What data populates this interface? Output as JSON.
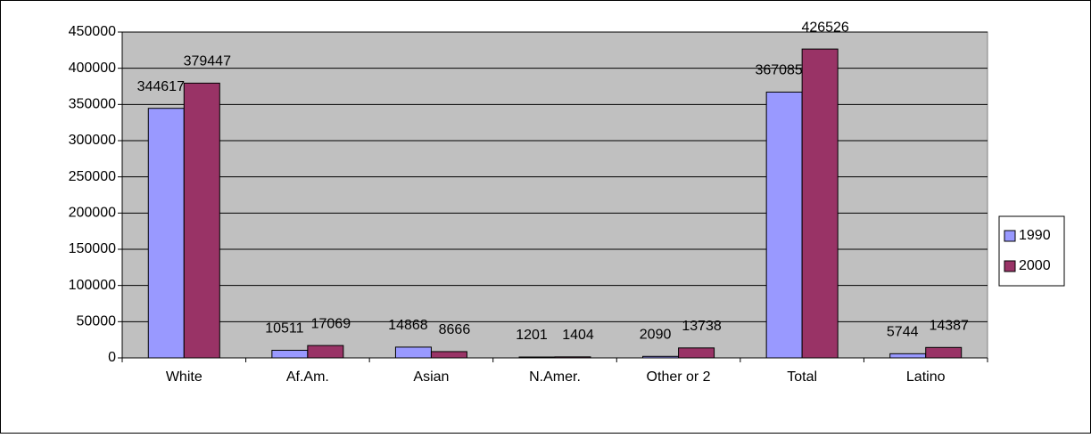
{
  "chart_data": {
    "type": "bar",
    "categories": [
      "White",
      "Af.Am.",
      "Asian",
      "N.Amer.",
      "Other or 2",
      "Total",
      "Latino"
    ],
    "series": [
      {
        "name": "1990",
        "color": "#9999ff",
        "values": [
          344617,
          10511,
          14868,
          1201,
          2090,
          367085,
          5744
        ]
      },
      {
        "name": "2000",
        "color": "#993366",
        "values": [
          379447,
          17069,
          8666,
          1404,
          13738,
          426526,
          14387
        ]
      }
    ],
    "ylim": [
      0,
      450000
    ],
    "yticks": [
      0,
      50000,
      100000,
      150000,
      200000,
      250000,
      300000,
      350000,
      400000,
      450000
    ],
    "grid": true,
    "legend": "right"
  }
}
